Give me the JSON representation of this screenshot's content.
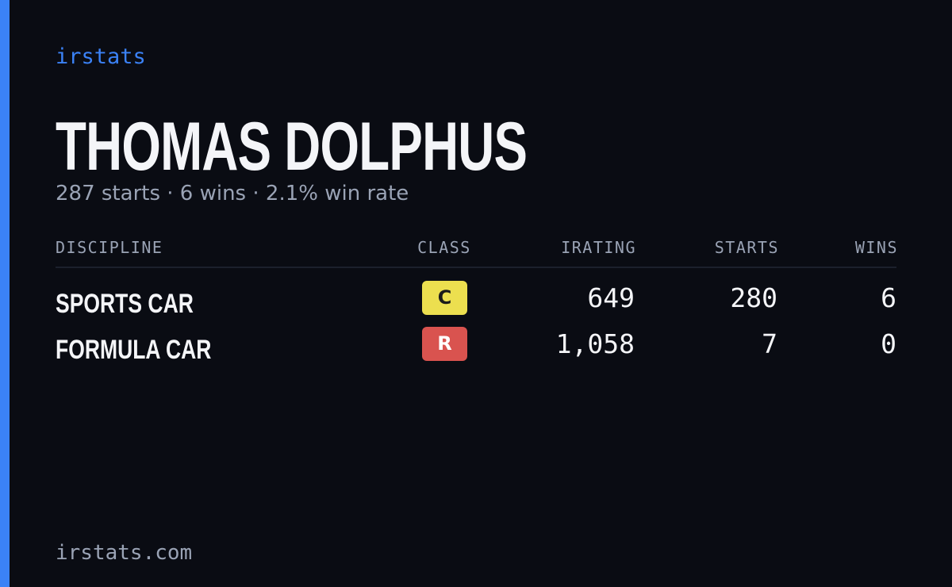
{
  "brand": "irstats",
  "driver": {
    "name": "THOMAS DOLPHUS",
    "summary": "287 starts · 6 wins · 2.1% win rate"
  },
  "table": {
    "headers": [
      "DISCIPLINE",
      "CLASS",
      "IRATING",
      "STARTS",
      "WINS"
    ],
    "rows": [
      {
        "discipline": "SPORTS CAR",
        "class": "C",
        "class_color": "#ecdf4f",
        "class_text_color": "#1a1a1a",
        "irating": "649",
        "starts": "280",
        "wins": "6"
      },
      {
        "discipline": "FORMULA CAR",
        "class": "R",
        "class_color": "#d9534f",
        "class_text_color": "#ffffff",
        "irating": "1,058",
        "starts": "7",
        "wins": "0"
      }
    ]
  },
  "footer": "irstats.com"
}
